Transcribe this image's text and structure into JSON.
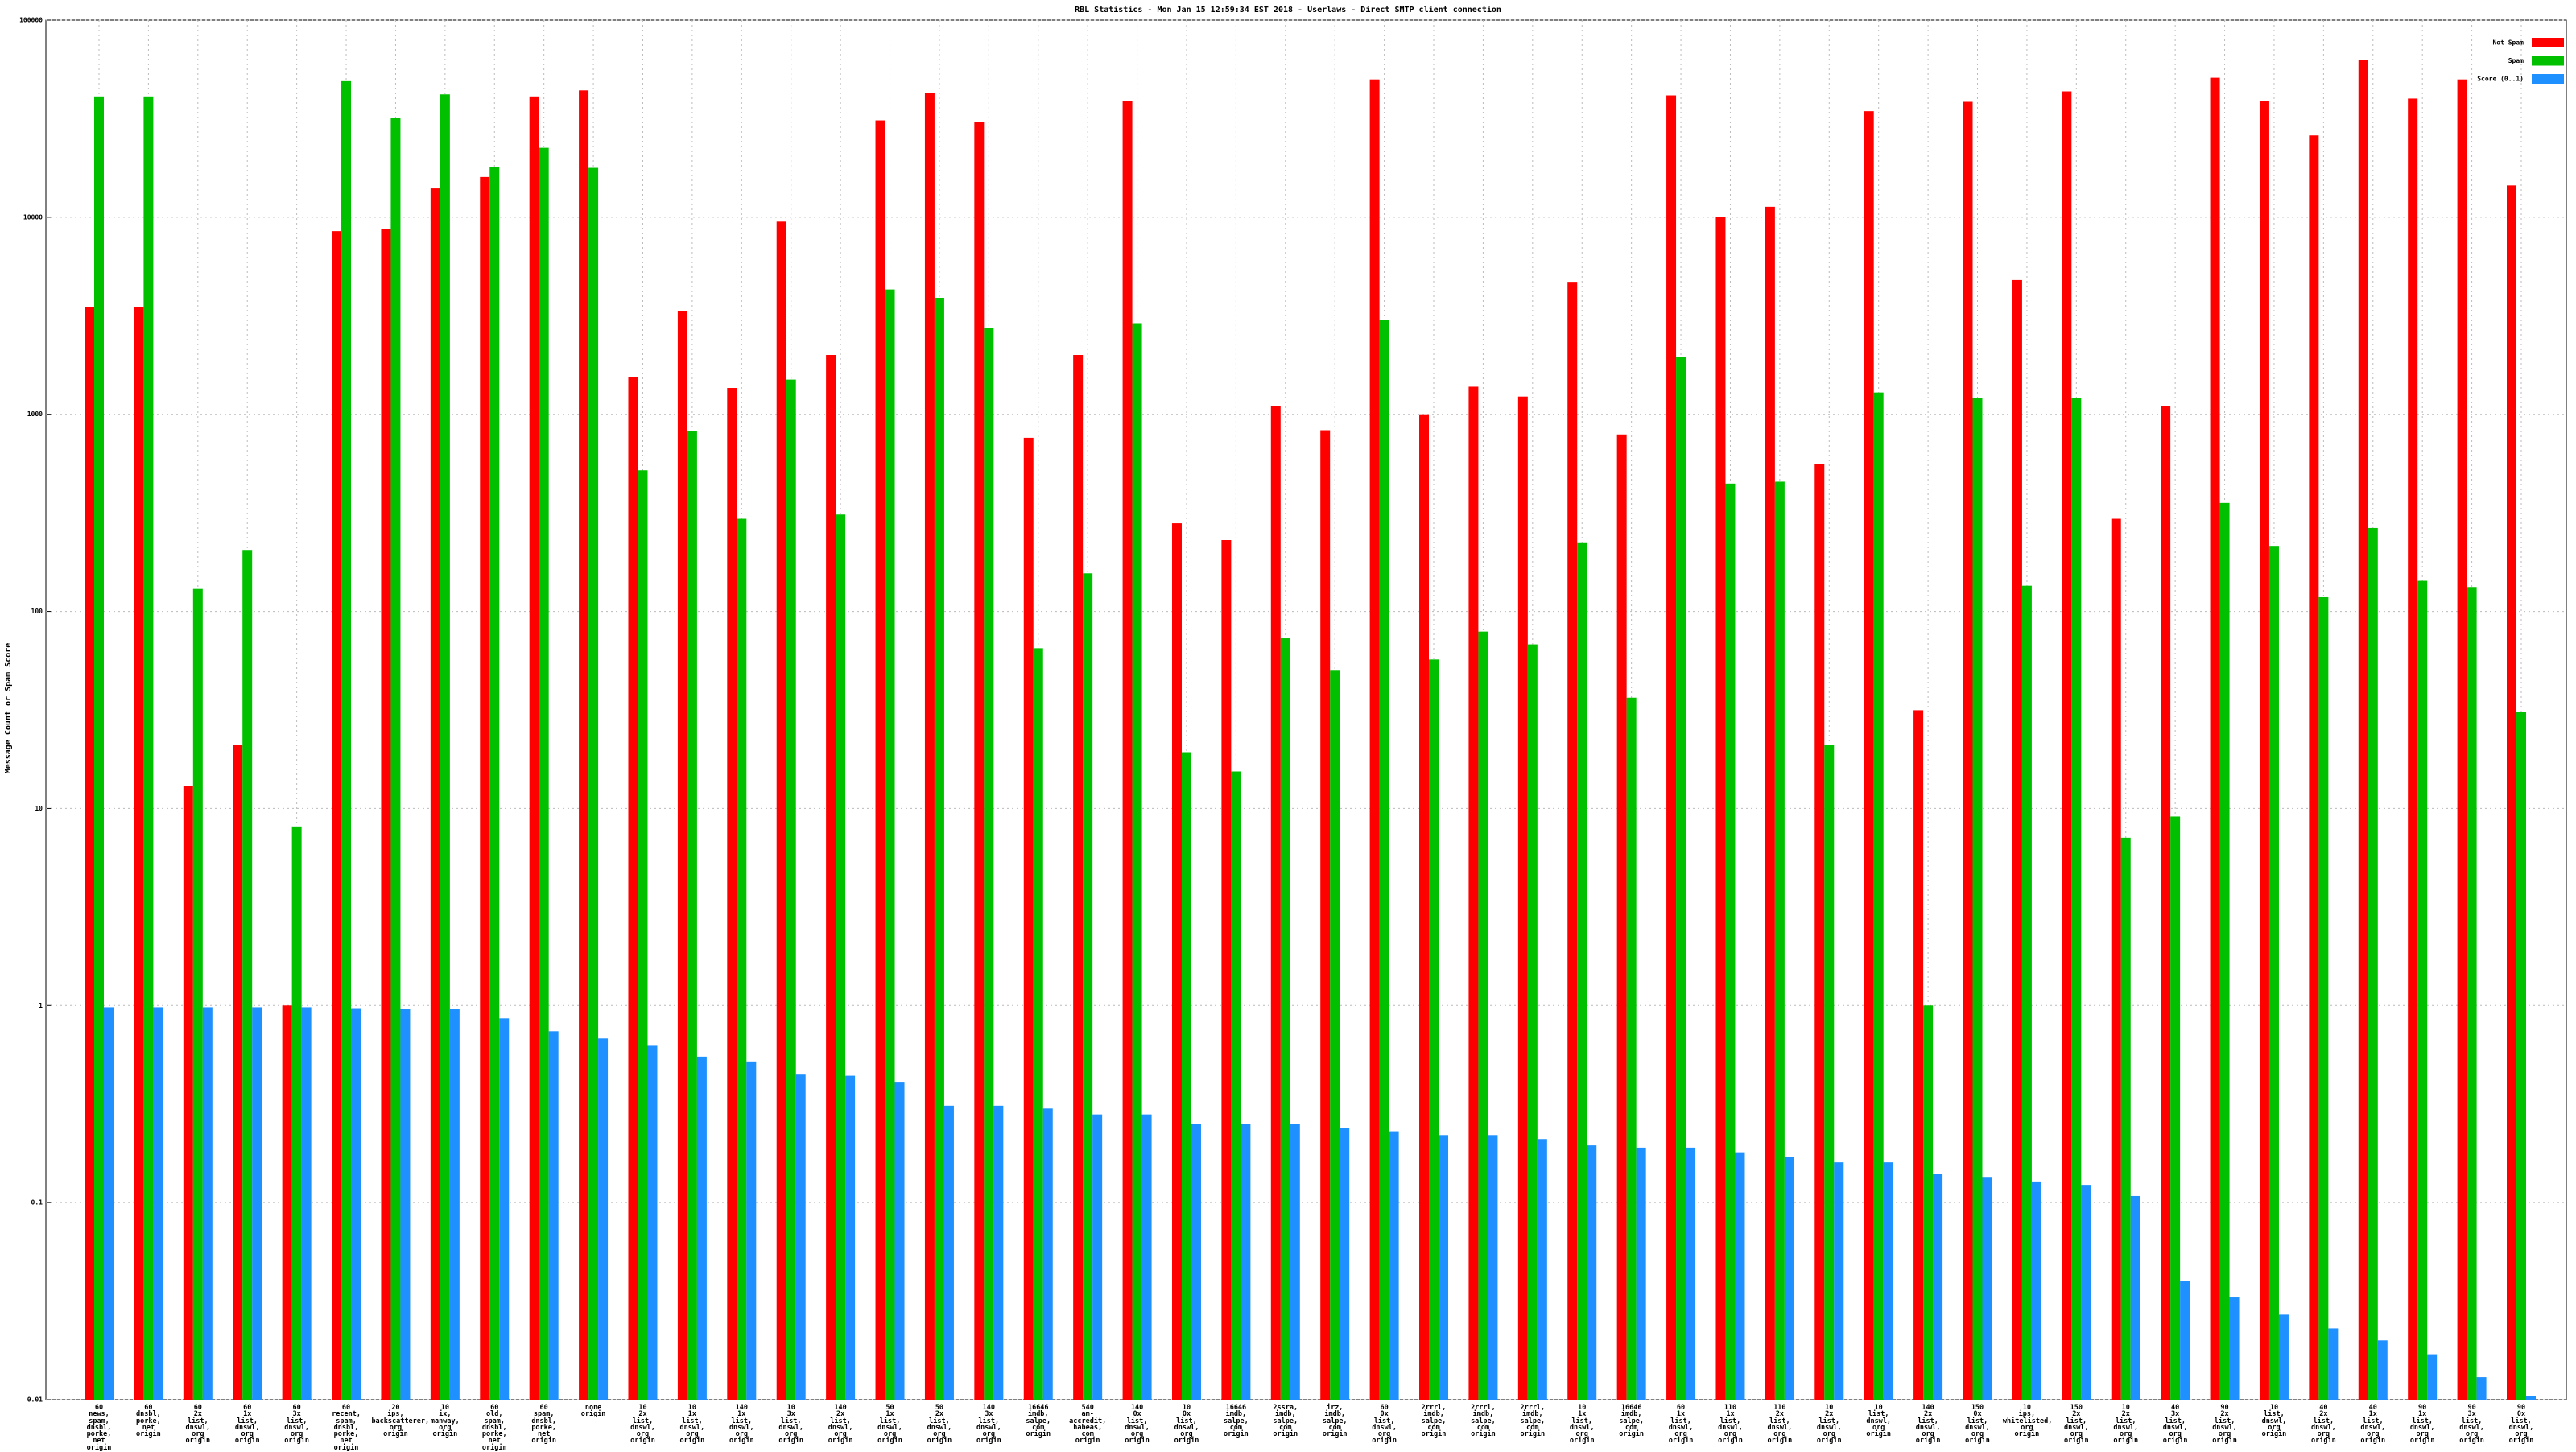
{
  "chart_data": {
    "type": "bar",
    "title": "RBL Statistics - Mon Jan 15 12:59:34 EST 2018 - Userlaws - Direct SMTP client connection",
    "y_label": "Message Count or Spam Score",
    "log_y": true,
    "grid": true,
    "legend": "top-right",
    "ylim": [
      0.01,
      100000
    ],
    "yticks": [
      0.01,
      0.1,
      1,
      10,
      100,
      1000,
      10000,
      100000
    ],
    "categories": [
      "60\nnews,\nspam,\ndnsbl,\nporke,\nnet\norigin",
      "60\ndnsbl,\nporke,\nnet\norigin",
      "60\n2x\nlist,\ndnswl,\norg\norigin",
      "60\n1x\nlist,\ndnswl,\norg\norigin",
      "60\n3x\nlist,\ndnswl,\norg\norigin",
      "60\nrecent,\nspam,\ndnsbl,\nporke,\nnet\norigin",
      "20\nips,\nbackscatterer,\norg\norigin",
      "10\nix,\nmanway,\norg\norigin",
      "60\nold,\nspam,\ndnsbl,\nporke,\nnet\norigin",
      "60\nspam,\ndnsbl,\nporke,\nnet\norigin",
      "none\norigin",
      "10\n2x\nlist,\ndnswl,\norg\norigin",
      "10\n1x\nlist,\ndnswl,\norg\norigin",
      "140\n1x\nlist,\ndnswl,\norg\norigin",
      "10\n3x\nlist,\ndnswl,\norg\norigin",
      "140\n2x\nlist,\ndnswl,\norg\norigin",
      "50\n1x\nlist,\ndnswl,\norg\norigin",
      "50\n2x\nlist,\ndnswl,\norg\norigin",
      "140\n3x\nlist,\ndnswl,\norg\norigin",
      "16646\nimdb,\nsalpe,\ncom\norigin",
      "540\nam-accredit,\nhabeas,\ncom\norigin",
      "140\n0x\nlist,\ndnswl,\norg\norigin",
      "10\n0x\nlist,\ndnswl,\norg\norigin",
      "16646\nimdb,\nsalpe,\ncom\norigin",
      "2ssra,\nimdb,\nsalpe,\ncom\norigin",
      "irz,\nimdb,\nsalpe,\ncom\norigin",
      "60\n0x\nlist,\ndnswl,\norg\norigin",
      "2rrrl,\nimdb,\nsalpe,\ncom\norigin",
      "2rrrl,\nimdb,\nsalpe,\ncom\norigin",
      "2rrrl,\nimdb,\nsalpe,\ncom\norigin",
      "10\n1x\nlist,\ndnswl,\norg\norigin",
      "16646\nimdb,\nsalpe,\ncom\norigin",
      "60\n1x\nlist,\ndnswl,\norg\norigin",
      "110\n1x\nlist,\ndnswl,\norg\norigin",
      "110\n2x\nlist,\ndnswl,\norg\norigin",
      "10\n2x\nlist,\ndnswl,\norg\norigin",
      "10\nlist,\ndnswl,\norg\norigin",
      "140\n2x\nlist,\ndnswl,\norg\norigin",
      "150\n0x\nlist,\ndnswl,\norg\norigin",
      "10\nips,\nwhitelisted,\norg\norigin",
      "150\n2x\nlist,\ndnswl,\norg\norigin",
      "10\n2x\nlist,\ndnswl,\norg\norigin",
      "40\n3x\nlist,\ndnswl,\norg\norigin",
      "90\n2x\nlist,\ndnswl,\norg\norigin",
      "10\nlist,\ndnswl,\norg\norigin",
      "40\n2x\nlist,\ndnswl,\norg\norigin",
      "40\n1x\nlist,\ndnswl,\norg\norigin",
      "90\n1x\nlist,\ndnswl,\norg\norigin",
      "90\n3x\nlist,\ndnswl,\norg\norigin",
      "90\n0x\nlist,\ndnswl,\norg\norigin"
    ],
    "series": [
      {
        "name": "Not Spam",
        "color": "#ff0000",
        "values": [
          3500,
          3500,
          13,
          21,
          1,
          8500,
          8700,
          14000,
          16000,
          41000,
          44000,
          1550,
          3350,
          1360,
          9500,
          2000,
          31000,
          42500,
          30500,
          760,
          2000,
          39000,
          280,
          230,
          1100,
          830,
          50000,
          1000,
          1380,
          1230,
          4700,
          790,
          41500,
          10000,
          11300,
          560,
          34500,
          31.5,
          38500,
          4800,
          43500,
          295,
          1100,
          51000,
          39000,
          26000,
          63000,
          40000,
          50000,
          14500
        ]
      },
      {
        "name": "Spam",
        "color": "#00c000",
        "values": [
          41000,
          41000,
          130,
          205,
          8.1,
          49000,
          32000,
          42000,
          18000,
          22500,
          17800,
          520,
          820,
          295,
          1500,
          310,
          4300,
          3900,
          2750,
          65,
          156,
          2900,
          19.3,
          15.4,
          73,
          50,
          3000,
          57,
          79,
          68,
          222,
          36.5,
          1950,
          445,
          455,
          21,
          1290,
          1,
          1210,
          135,
          1210,
          7.1,
          9.1,
          355,
          215,
          118,
          265,
          143,
          133,
          30.8
        ]
      },
      {
        "name": "Score (0..1)",
        "color": "#1e90ff",
        "values": [
          0.98,
          0.98,
          0.98,
          0.98,
          0.98,
          0.97,
          0.96,
          0.96,
          0.86,
          0.74,
          0.68,
          0.63,
          0.55,
          0.52,
          0.45,
          0.44,
          0.41,
          0.31,
          0.31,
          0.3,
          0.28,
          0.28,
          0.25,
          0.25,
          0.25,
          0.24,
          0.23,
          0.22,
          0.22,
          0.21,
          0.195,
          0.19,
          0.19,
          0.18,
          0.17,
          0.16,
          0.16,
          0.14,
          0.135,
          0.128,
          0.123,
          0.108,
          0.04,
          0.033,
          0.027,
          0.023,
          0.02,
          0.017,
          0.013,
          0.0104
        ]
      }
    ]
  }
}
